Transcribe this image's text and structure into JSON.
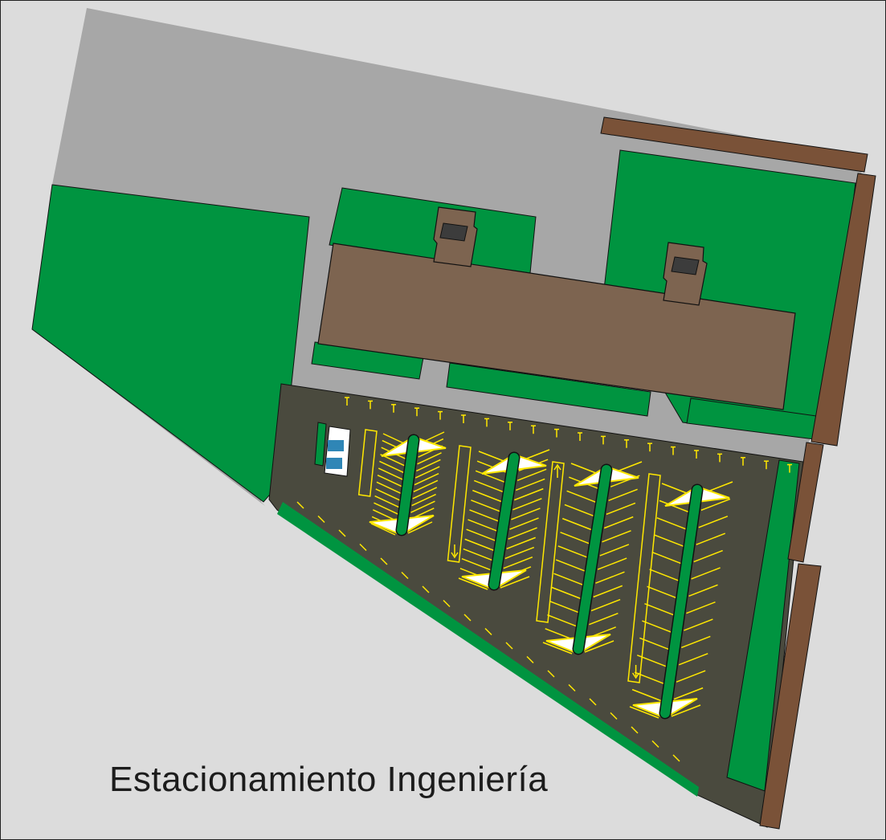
{
  "caption": "Estacionamiento Ingeniería",
  "colors": {
    "background": "#dcdcdc",
    "road": "#a7a7a7",
    "grass": "#009440",
    "building": "#7d6450",
    "wall": "#7a5238",
    "asphalt": "#4a4a3e",
    "marking": "#ffe800",
    "hatch": "#ffffff",
    "accessible": "#2f86b6",
    "outline": "#111111"
  },
  "legend_items": [
    {
      "name": "road",
      "color_key": "road"
    },
    {
      "name": "green-area",
      "color_key": "grass"
    },
    {
      "name": "building",
      "color_key": "building"
    },
    {
      "name": "perimeter-wall",
      "color_key": "wall"
    },
    {
      "name": "parking-lot",
      "color_key": "asphalt"
    }
  ],
  "icons": [
    "accessible-parking-icon",
    "arrow-up-icon",
    "arrow-down-icon"
  ]
}
